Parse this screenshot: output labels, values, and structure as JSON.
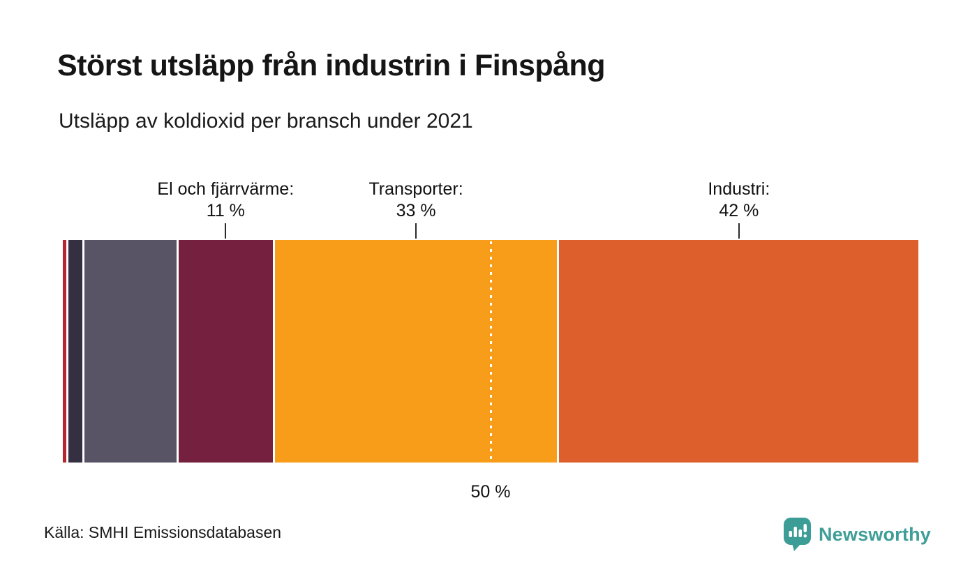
{
  "header": {
    "title": "Störst utsläpp från industrin i Finspång",
    "subtitle": "Utsläpp av koldioxid per bransch under 2021"
  },
  "footer": {
    "source": "Källa: SMHI Emissionsdatabasen",
    "brand": "Newsworthy"
  },
  "colors": {
    "background": "#ffffff",
    "text": "#1a1a1a",
    "tick": "#2b2b2b",
    "brand_teal": "#3f9e97"
  },
  "chart_data": {
    "type": "bar",
    "variant": "horizontal-stacked-percentage",
    "title": "Störst utsläpp från industrin i Finspång",
    "subtitle": "Utsläpp av koldioxid per bransch under 2021",
    "unit": "%",
    "xlim": [
      0,
      100
    ],
    "segments": [
      {
        "label": "",
        "value_label": "",
        "percent": 0.4,
        "color": "#b5272e"
      },
      {
        "label": "",
        "value_label": "",
        "percent": 1.6,
        "color": "#343042"
      },
      {
        "label": "",
        "value_label": "",
        "percent": 10.8,
        "color": "#585465"
      },
      {
        "label": "El och fjärrvärme:",
        "value_label": "11 %",
        "percent": 11,
        "color": "#76203f"
      },
      {
        "label": "Transporter:",
        "value_label": "33 %",
        "percent": 33,
        "color": "#f79d19"
      },
      {
        "label": "Industri:",
        "value_label": "42 %",
        "percent": 42,
        "color": "#dd5f2b"
      }
    ],
    "reference_line": {
      "value": 50,
      "label": "50 %"
    }
  }
}
